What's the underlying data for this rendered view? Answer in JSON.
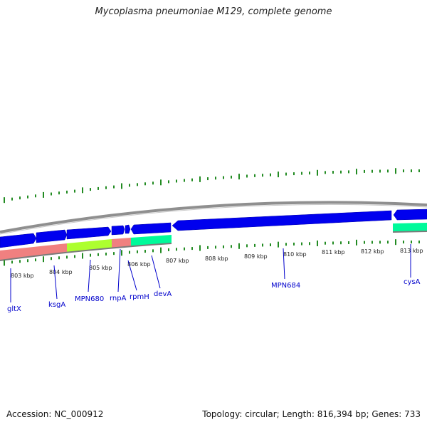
{
  "title": "Mycoplasma pneumoniae M129, complete genome",
  "footer": {
    "accession": "Accession: NC_000912",
    "summary": "Topology: circular; Length: 816,394 bp; Genes: 733"
  },
  "colors": {
    "forward_genes": "#0000ee",
    "backbone": "#808080",
    "gc_skew": "#228b22",
    "gltX": "#f08080",
    "MPN680": "#adff2f",
    "rnpA": "#f08080",
    "devA": "#00fa9a",
    "cysA": "#00fa9a",
    "gene_label": "#0000cc"
  },
  "axis": {
    "tick_labels": [
      "803 kbp",
      "804 kbp",
      "805 kbp",
      "806 kbp",
      "807 kbp",
      "808 kbp",
      "809 kbp",
      "810 kbp",
      "811 kbp",
      "812 kbp",
      "813 kbp"
    ]
  },
  "gene_labels": [
    "gltX",
    "ksgA",
    "MPN680",
    "rnpA",
    "rpmH",
    "devA",
    "MPN684",
    "cysA"
  ]
}
